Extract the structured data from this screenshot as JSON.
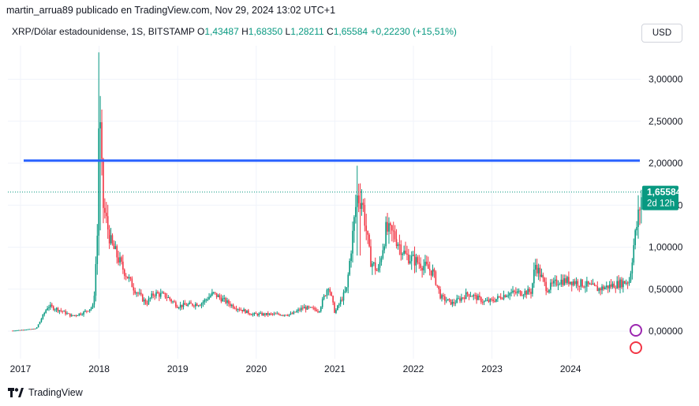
{
  "header": {
    "publisher": "martin_arrua89 publicado en TradingView.com, Nov 29, 2024 13:02 UTC+1"
  },
  "legend": {
    "symbol": "XRP/Dólar estadounidense, 1S, BITSTAMP",
    "open_key": "O",
    "open": "1,43487",
    "high_key": "H",
    "high": "1,68350",
    "low_key": "L",
    "low": "1,28211",
    "close_key": "C",
    "close": "1,65584",
    "change": "+0,22230 (+15,51%)"
  },
  "toolbar": {
    "currency_label": "USD"
  },
  "price_label": {
    "value": "1,65584",
    "countdown": "2d 12h"
  },
  "footer": {
    "brand": "TradingView"
  },
  "colors": {
    "up": "#089981",
    "down": "#f23645",
    "level_line": "#2962ff",
    "grid": "#f0f3fa",
    "text": "#131722"
  },
  "icons": {
    "brand": "tradingview-logo-icon",
    "event_1": "lightning-icon",
    "event_2": "flag-icon"
  },
  "chart_data": {
    "type": "candlestick",
    "x_ticks": [
      "2017",
      "2018",
      "2019",
      "2020",
      "2021",
      "2022",
      "2023",
      "2024"
    ],
    "y_ticks": [
      "0,00000",
      "0,50000",
      "1,00000",
      "1,50000",
      "2,00000",
      "2,50000",
      "3,00000"
    ],
    "ylim": [
      -0.3,
      3.4
    ],
    "xlim": [
      2016.85,
      2024.95
    ],
    "level_line": 2.03,
    "last_close": 1.65584,
    "grid": true,
    "key_points": [
      [
        2016.9,
        0.006
      ],
      [
        2017.2,
        0.03
      ],
      [
        2017.35,
        0.3
      ],
      [
        2017.5,
        0.25
      ],
      [
        2017.65,
        0.18
      ],
      [
        2017.8,
        0.22
      ],
      [
        2017.93,
        0.3
      ],
      [
        2017.98,
        1.2
      ],
      [
        2018.0,
        2.75
      ],
      [
        2018.05,
        1.5
      ],
      [
        2018.15,
        1.05
      ],
      [
        2018.3,
        0.75
      ],
      [
        2018.45,
        0.5
      ],
      [
        2018.6,
        0.33
      ],
      [
        2018.7,
        0.45
      ],
      [
        2018.85,
        0.42
      ],
      [
        2019.0,
        0.3
      ],
      [
        2019.3,
        0.33
      ],
      [
        2019.45,
        0.45
      ],
      [
        2019.7,
        0.3
      ],
      [
        2019.95,
        0.2
      ],
      [
        2020.2,
        0.2
      ],
      [
        2020.45,
        0.2
      ],
      [
        2020.6,
        0.28
      ],
      [
        2020.8,
        0.25
      ],
      [
        2020.92,
        0.55
      ],
      [
        2021.0,
        0.22
      ],
      [
        2021.15,
        0.5
      ],
      [
        2021.28,
        1.6
      ],
      [
        2021.35,
        1.55
      ],
      [
        2021.45,
        0.85
      ],
      [
        2021.55,
        0.7
      ],
      [
        2021.65,
        1.2
      ],
      [
        2021.75,
        1.15
      ],
      [
        2021.9,
        0.9
      ],
      [
        2022.1,
        0.8
      ],
      [
        2022.25,
        0.7
      ],
      [
        2022.35,
        0.4
      ],
      [
        2022.5,
        0.33
      ],
      [
        2022.7,
        0.45
      ],
      [
        2022.9,
        0.35
      ],
      [
        2023.0,
        0.36
      ],
      [
        2023.2,
        0.45
      ],
      [
        2023.5,
        0.47
      ],
      [
        2023.55,
        0.8
      ],
      [
        2023.7,
        0.5
      ],
      [
        2023.85,
        0.6
      ],
      [
        2024.0,
        0.6
      ],
      [
        2024.2,
        0.55
      ],
      [
        2024.35,
        0.5
      ],
      [
        2024.55,
        0.55
      ],
      [
        2024.75,
        0.6
      ],
      [
        2024.8,
        1.0
      ],
      [
        2024.87,
        1.42
      ],
      [
        2024.91,
        1.656
      ]
    ],
    "spikes": [
      {
        "x": 2018.0,
        "high": 3.32,
        "low": 0.9
      },
      {
        "x": 2018.02,
        "high": 2.8,
        "low": 1.2
      },
      {
        "x": 2021.28,
        "high": 1.97,
        "low": 0.9
      },
      {
        "x": 2021.32,
        "high": 1.76,
        "low": 0.9
      },
      {
        "x": 2024.91,
        "high": 1.6835,
        "low": 1.28211
      }
    ]
  }
}
